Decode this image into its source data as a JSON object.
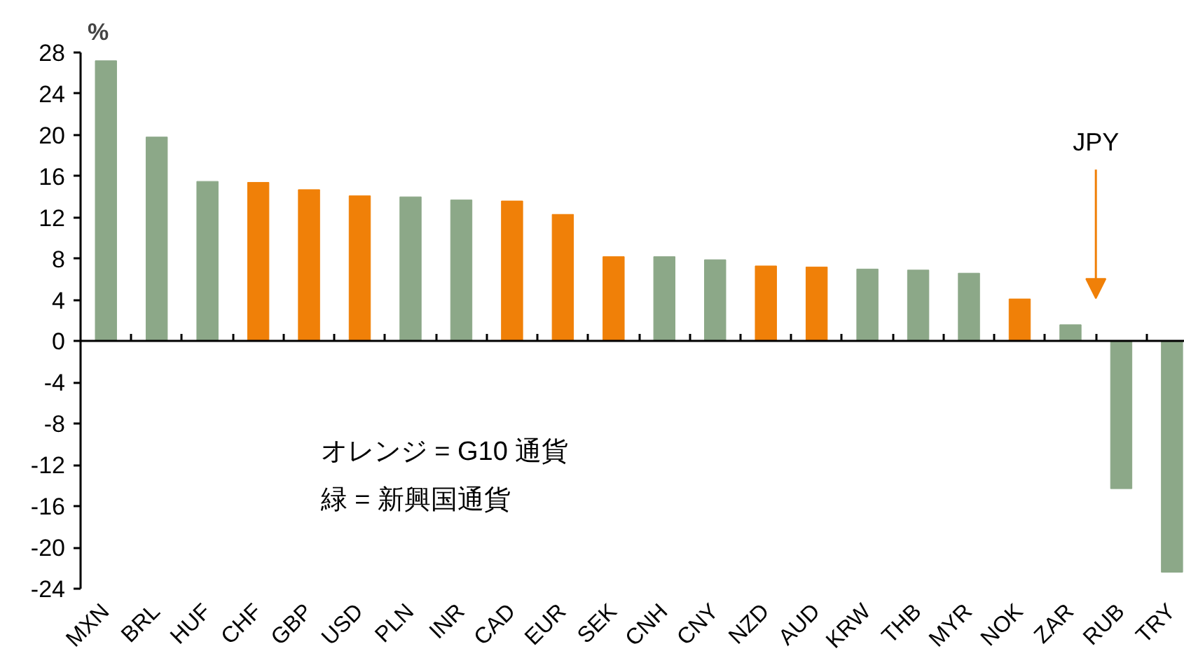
{
  "chart_data": {
    "type": "bar",
    "ylabel": "%",
    "categories": [
      "MXN",
      "BRL",
      "HUF",
      "CHF",
      "GBP",
      "USD",
      "PLN",
      "INR",
      "CAD",
      "EUR",
      "SEK",
      "CNH",
      "CNY",
      "NZD",
      "AUD",
      "KRW",
      "THB",
      "MYR",
      "NOK",
      "ZAR",
      "RUB",
      "TRY"
    ],
    "values": [
      27.2,
      19.8,
      15.5,
      15.4,
      14.7,
      14.1,
      14.0,
      13.7,
      13.6,
      12.3,
      8.2,
      8.2,
      7.9,
      7.3,
      7.2,
      7.0,
      6.9,
      6.6,
      4.1,
      1.6,
      -14.3,
      -22.4
    ],
    "colors": [
      "#8ca888",
      "#8ca888",
      "#8ca888",
      "#f08008",
      "#f08008",
      "#f08008",
      "#8ca888",
      "#8ca888",
      "#f08008",
      "#f08008",
      "#f08008",
      "#8ca888",
      "#8ca888",
      "#f08008",
      "#f08008",
      "#8ca888",
      "#8ca888",
      "#8ca888",
      "#f08008",
      "#8ca888",
      "#8ca888",
      "#8ca888"
    ],
    "ylim": [
      -24,
      28
    ],
    "yticks": [
      -24,
      -20,
      -16,
      -12,
      -8,
      -4,
      0,
      4,
      8,
      12,
      16,
      20,
      24,
      28
    ],
    "annotations": [
      "JPY",
      "オレンジ = G10 通貨",
      "緑 = 新興国通貨"
    ]
  }
}
